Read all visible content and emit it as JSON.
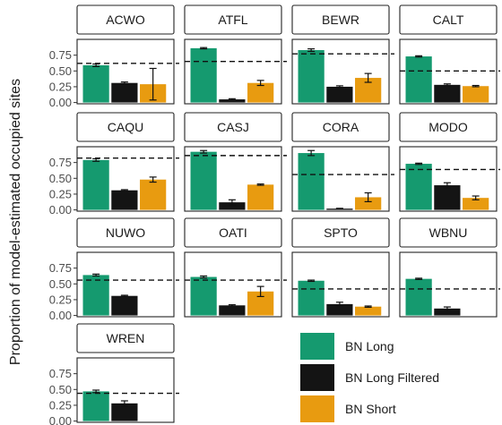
{
  "chart_data": {
    "type": "bar",
    "ylabel": "Proportion of model-estimated occupied sites",
    "ylim": [
      -0.02,
      1.0
    ],
    "yticks": [
      "0.00",
      "0.25",
      "0.50",
      "0.75"
    ],
    "series": [
      {
        "name": "BN Long",
        "color": "#159A6F"
      },
      {
        "name": "BN Long Filtered",
        "color": "#141414"
      },
      {
        "name": "BN Short",
        "color": "#E89B10"
      }
    ],
    "legend_position": "bottom-right",
    "panels": [
      {
        "title": "ACWO",
        "ref": 0.62,
        "values": [
          0.59,
          0.31,
          0.29
        ],
        "err": [
          0.02,
          0.015,
          0.25
        ]
      },
      {
        "title": "ATFL",
        "ref": 0.65,
        "values": [
          0.86,
          0.05,
          0.31
        ],
        "err": [
          0.01,
          0.01,
          0.04
        ]
      },
      {
        "title": "BEWR",
        "ref": 0.77,
        "values": [
          0.83,
          0.25,
          0.39
        ],
        "err": [
          0.02,
          0.015,
          0.07
        ]
      },
      {
        "title": "CALT",
        "ref": 0.5,
        "values": [
          0.73,
          0.28,
          0.26
        ],
        "err": [
          0.01,
          0.015,
          0.01
        ]
      },
      {
        "title": "CAQU",
        "ref": 0.82,
        "values": [
          0.79,
          0.31,
          0.48
        ],
        "err": [
          0.02,
          0.01,
          0.04
        ]
      },
      {
        "title": "CASJ",
        "ref": 0.86,
        "values": [
          0.92,
          0.12,
          0.4
        ],
        "err": [
          0.02,
          0.04,
          0.01
        ]
      },
      {
        "title": "CORA",
        "ref": 0.56,
        "values": [
          0.9,
          0.02,
          0.2
        ],
        "err": [
          0.04,
          0.005,
          0.07
        ]
      },
      {
        "title": "MODO",
        "ref": 0.64,
        "values": [
          0.73,
          0.39,
          0.19
        ],
        "err": [
          0.01,
          0.04,
          0.03
        ]
      },
      {
        "title": "NUWO",
        "ref": 0.56,
        "values": [
          0.64,
          0.31,
          null
        ],
        "err": [
          0.015,
          0.01,
          0
        ]
      },
      {
        "title": "OATI",
        "ref": 0.56,
        "values": [
          0.61,
          0.16,
          0.38
        ],
        "err": [
          0.015,
          0.01,
          0.08
        ]
      },
      {
        "title": "SPTO",
        "ref": 0.42,
        "values": [
          0.55,
          0.18,
          0.14
        ],
        "err": [
          0.01,
          0.03,
          0.01
        ]
      },
      {
        "title": "WBNU",
        "ref": 0.42,
        "values": [
          0.58,
          0.11,
          null
        ],
        "err": [
          0.01,
          0.025,
          0
        ]
      },
      {
        "title": "WREN",
        "ref": 0.44,
        "values": [
          0.47,
          0.28,
          null
        ],
        "err": [
          0.02,
          0.04,
          0
        ]
      }
    ]
  }
}
